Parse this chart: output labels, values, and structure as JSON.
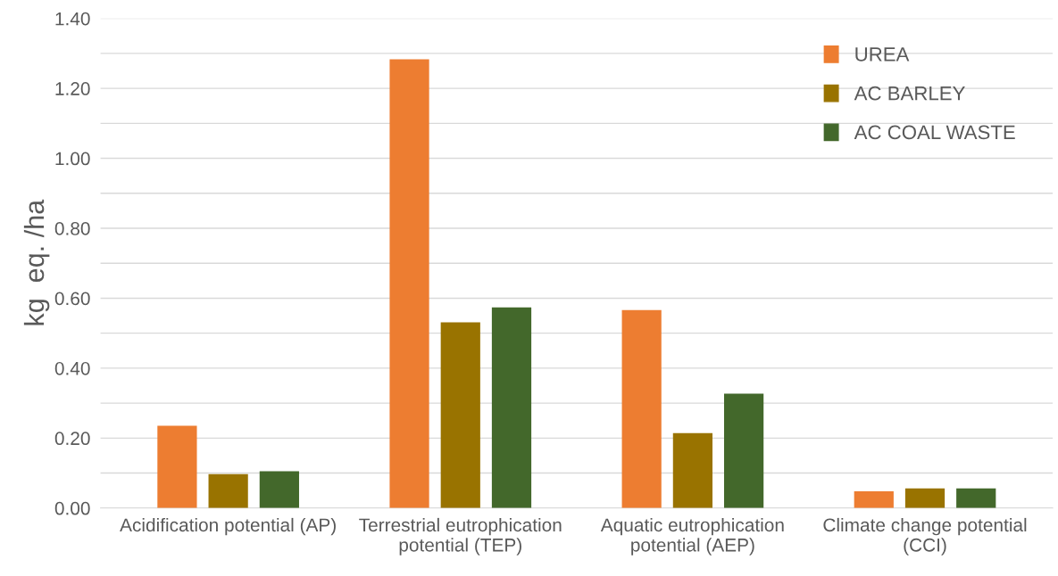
{
  "chart_data": {
    "type": "bar",
    "ylabel": "kg  eq. /ha",
    "categories": [
      "Acidification potential (AP)",
      "Terrestrial eutrophication\npotential (TEP)",
      "Aquatic eutrophication\npotential (AEP)",
      "Climate change potential\n(CCI)"
    ],
    "series": [
      {
        "name": "UREA",
        "color": "#ed7d31",
        "values": [
          0.235,
          1.283,
          0.566,
          0.048
        ]
      },
      {
        "name": "AC BARLEY",
        "color": "#997300",
        "values": [
          0.097,
          0.531,
          0.214,
          0.056
        ]
      },
      {
        "name": "AC COAL WASTE",
        "color": "#43682b",
        "values": [
          0.105,
          0.574,
          0.327,
          0.056
        ]
      }
    ],
    "ylim": [
      0,
      1.4
    ],
    "yticks": [
      {
        "value": 0,
        "label": "0.00"
      },
      {
        "value": 0.1,
        "label": null
      },
      {
        "value": 0.2,
        "label": "0.20"
      },
      {
        "value": 0.3,
        "label": null
      },
      {
        "value": 0.4,
        "label": "0.40"
      },
      {
        "value": 0.5,
        "label": null
      },
      {
        "value": 0.6,
        "label": "0.60"
      },
      {
        "value": 0.7,
        "label": null
      },
      {
        "value": 0.8,
        "label": "0.80"
      },
      {
        "value": 0.9,
        "label": null
      },
      {
        "value": 1.0,
        "label": "1.00"
      },
      {
        "value": 1.1,
        "label": null
      },
      {
        "value": 1.2,
        "label": "1.20"
      },
      {
        "value": 1.3,
        "label": null
      },
      {
        "value": 1.4,
        "label": "1.40"
      }
    ],
    "grid": "y",
    "legend": "top right"
  }
}
